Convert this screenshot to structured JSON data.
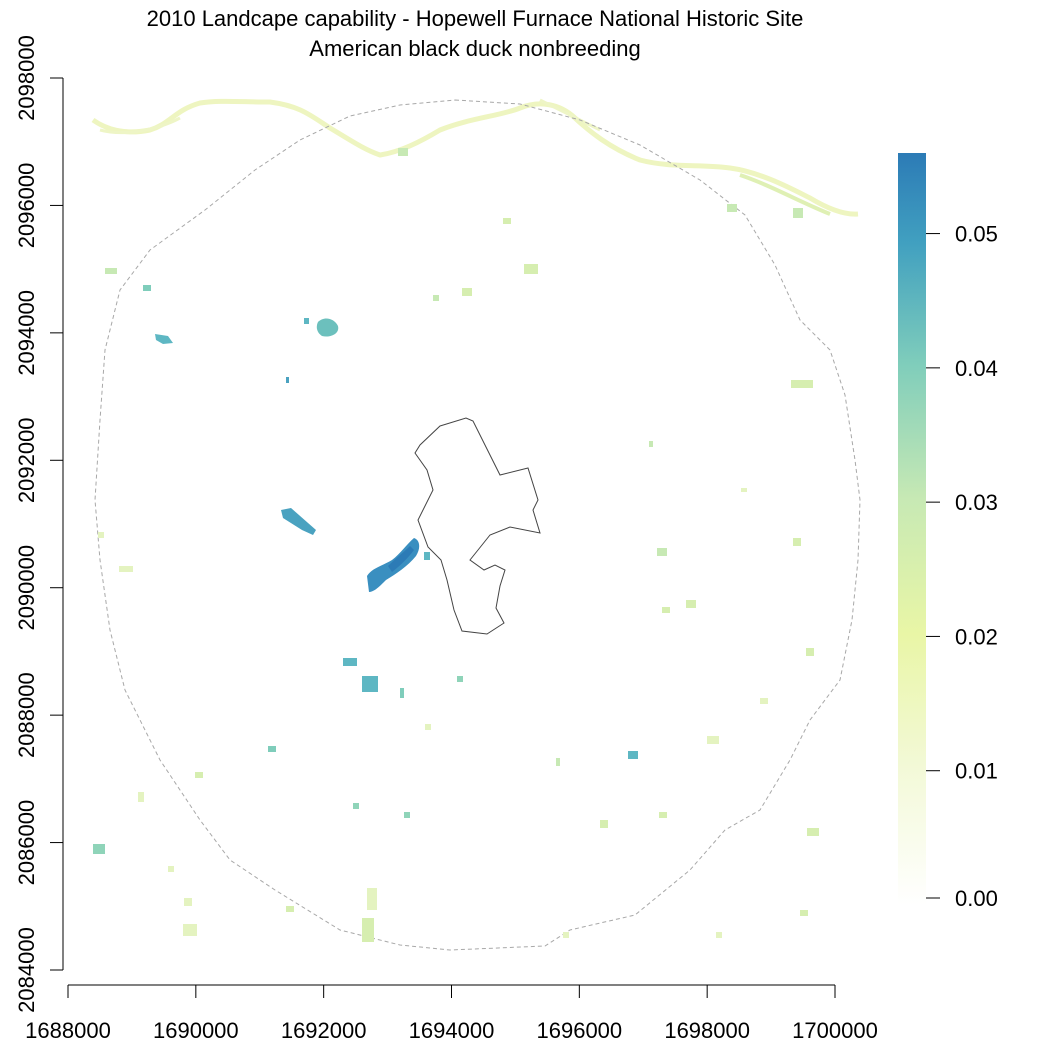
{
  "title": {
    "line1": "2010 Landcape capability - Hopewell Furnace National Historic Site",
    "line2": "American black duck nonbreeding"
  },
  "map": {
    "x_range": [
      1688000,
      1700000
    ],
    "y_range": [
      2084000,
      2098000
    ],
    "x_ticks": [
      "1688000",
      "1690000",
      "1692000",
      "1694000",
      "1696000",
      "1698000",
      "1700000"
    ],
    "y_ticks": [
      "2084000",
      "2086000",
      "2088000",
      "2090000",
      "2092000",
      "2094000",
      "2096000",
      "2098000"
    ],
    "x_tick_values": [
      1688000,
      1690000,
      1692000,
      1694000,
      1696000,
      1698000,
      1700000
    ],
    "y_tick_values": [
      2084000,
      2086000,
      2088000,
      2090000,
      2092000,
      2094000,
      2096000,
      2098000
    ],
    "buffer_boundary": "dashed-gray-circle",
    "park_boundary": "solid-dark-polygon"
  },
  "legend": {
    "tick_labels": [
      "0.00",
      "0.01",
      "0.02",
      "0.03",
      "0.04",
      "0.05"
    ],
    "tick_values": [
      0,
      0.01,
      0.02,
      0.03,
      0.04,
      0.05
    ],
    "min": 0,
    "max": 0.056,
    "colors": [
      "#ffffff",
      "#f3f9c9",
      "#e8f6a4",
      "#c6e9b4",
      "#8fd4b9",
      "#5eb7c3",
      "#3a90c0",
      "#2c7bb6"
    ]
  },
  "colors": {
    "river": "#eef5c0",
    "buffer": "#b0b0b0",
    "park": "#555555",
    "high_value": "#2c7bb6"
  }
}
